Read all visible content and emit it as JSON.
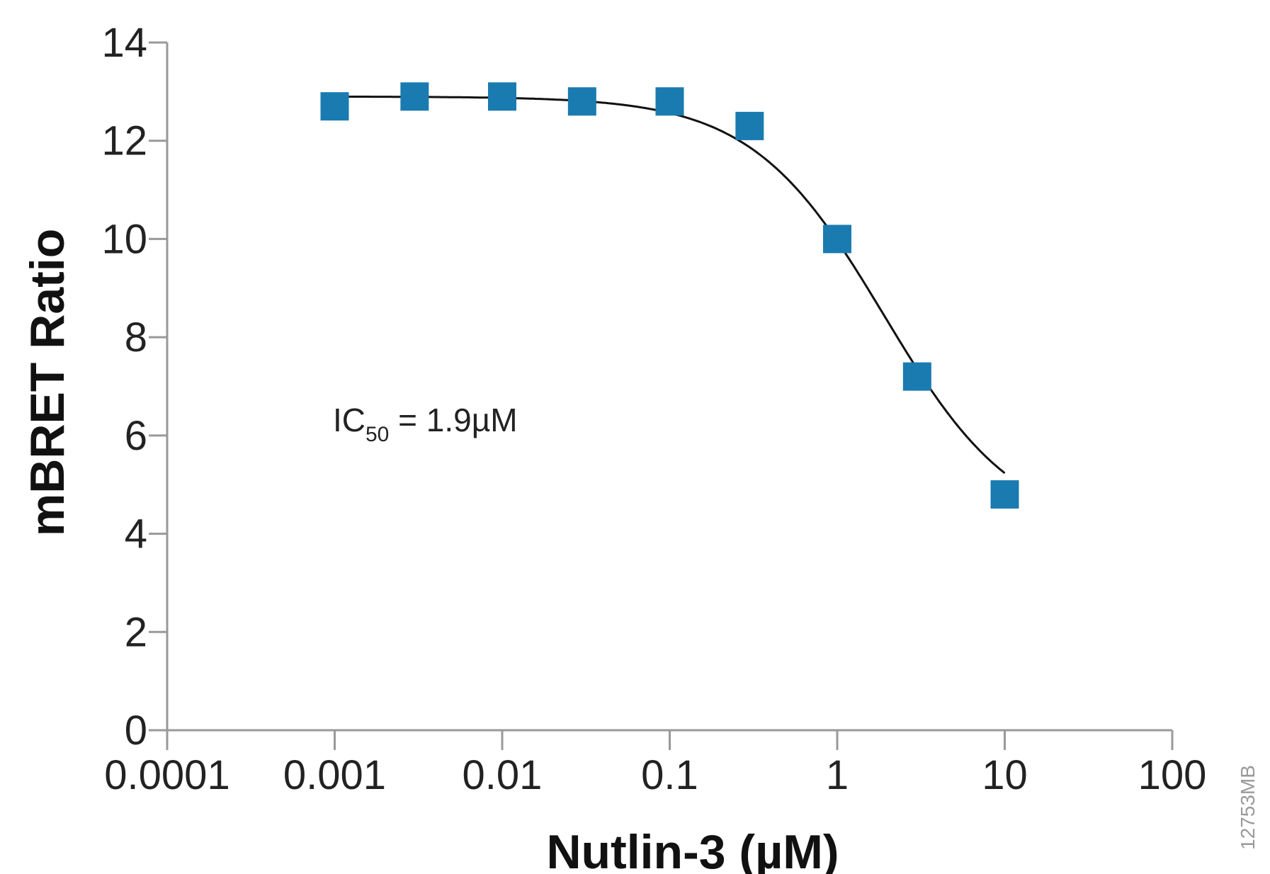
{
  "chart_data": {
    "type": "scatter",
    "title": "",
    "xlabel": "Nutlin-3 (µM)",
    "ylabel": "mBRET Ratio",
    "x_scale": "log",
    "xlim": [
      0.0001,
      100
    ],
    "ylim": [
      0,
      14
    ],
    "x_ticks": [
      0.0001,
      0.001,
      0.01,
      0.1,
      1,
      10,
      100
    ],
    "x_tick_labels": [
      "0.0001",
      "0.001",
      "0.01",
      "0.1",
      "1",
      "10",
      "100"
    ],
    "y_ticks": [
      0,
      2,
      4,
      6,
      8,
      10,
      12,
      14
    ],
    "y_tick_labels": [
      "0",
      "2",
      "4",
      "6",
      "8",
      "10",
      "12",
      "14"
    ],
    "grid": false,
    "legend": "none",
    "marker": "square",
    "marker_color": "#1a7bb0",
    "series": [
      {
        "x": [
          0.001,
          0.003,
          0.01,
          0.03,
          0.1,
          0.3,
          1,
          3,
          10
        ],
        "y": [
          12.7,
          12.9,
          12.9,
          12.8,
          12.8,
          12.3,
          10.0,
          7.2,
          4.8
        ]
      }
    ],
    "fit": {
      "type": "sigmoidal dose-response",
      "top": 12.9,
      "bottom": 4.0,
      "ic50": 1.9,
      "hill": 1.1
    },
    "annotation": {
      "text_main": "IC",
      "text_sub": "50",
      "text_tail": " = 1.9µM"
    },
    "figure_id": "12753MB"
  }
}
